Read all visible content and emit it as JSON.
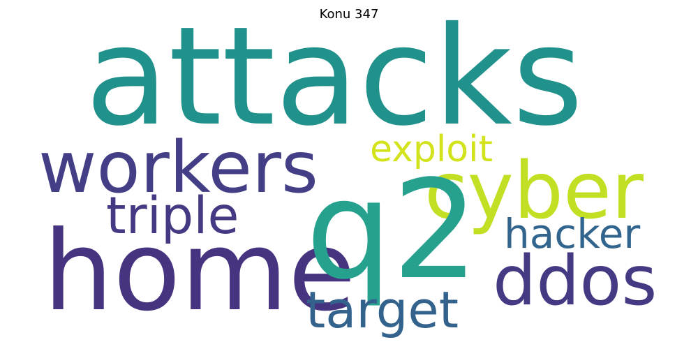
{
  "title": "Konu 347",
  "words": [
    {
      "text": "attacks",
      "color": "#21918c"
    },
    {
      "text": "workers",
      "color": "#433e85"
    },
    {
      "text": "cyber",
      "color": "#c2df23"
    },
    {
      "text": "exploit",
      "color": "#d2e21b"
    },
    {
      "text": "triple",
      "color": "#443983"
    },
    {
      "text": "q2",
      "color": "#25a18e"
    },
    {
      "text": "home",
      "color": "#463480"
    },
    {
      "text": "hacker",
      "color": "#32658e"
    },
    {
      "text": "ddos",
      "color": "#443a83"
    },
    {
      "text": "target",
      "color": "#33638d"
    }
  ]
}
